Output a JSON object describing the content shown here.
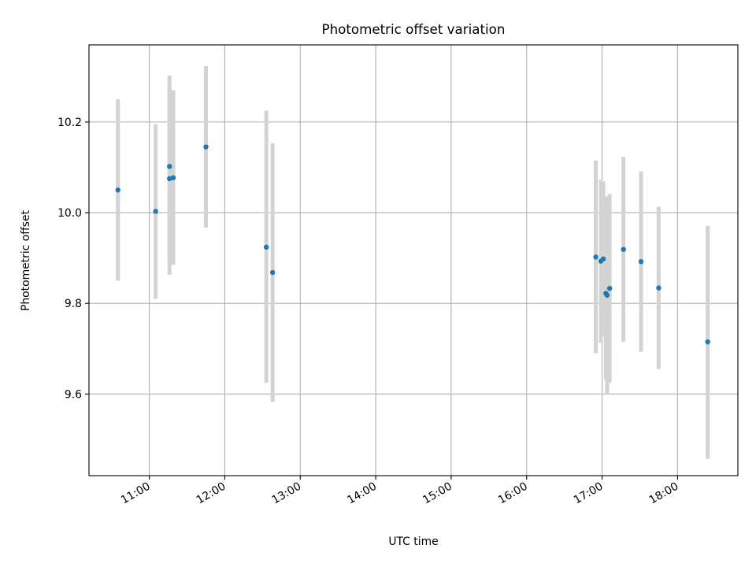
{
  "chart_data": {
    "type": "scatter",
    "title": "Photometric offset variation",
    "xlabel": "UTC time",
    "ylabel": "Photometric offset",
    "x_unit": "UTC hour of day",
    "xlim": [
      "10:12",
      "18:48"
    ],
    "ylim": [
      9.42,
      10.37
    ],
    "x_ticks": [
      "11:00",
      "12:00",
      "13:00",
      "14:00",
      "15:00",
      "16:00",
      "17:00",
      "18:00"
    ],
    "y_ticks": [
      "9.6",
      "9.8",
      "10.0",
      "10.2"
    ],
    "grid": true,
    "legend": "none",
    "colors": {
      "points": "#1f77b4",
      "error_bars": "#d3d3d3",
      "grid": "#b0b0b0"
    },
    "points": [
      {
        "time": "10:35",
        "y": 10.05,
        "err_low": 9.85,
        "err_high": 10.25
      },
      {
        "time": "11:05",
        "y": 10.003,
        "err_low": 9.81,
        "err_high": 10.195
      },
      {
        "time": "11:16",
        "y": 10.102,
        "err_low": 9.9,
        "err_high": 10.302
      },
      {
        "time": "11:16",
        "y": 10.075,
        "err_low": 9.863,
        "err_high": 10.287
      },
      {
        "time": "11:19",
        "y": 10.077,
        "err_low": 9.885,
        "err_high": 10.27
      },
      {
        "time": "11:45",
        "y": 10.145,
        "err_low": 9.967,
        "err_high": 10.323
      },
      {
        "time": "12:33",
        "y": 9.924,
        "err_low": 9.625,
        "err_high": 10.225
      },
      {
        "time": "12:38",
        "y": 9.868,
        "err_low": 9.583,
        "err_high": 10.153
      },
      {
        "time": "16:55",
        "y": 9.902,
        "err_low": 9.69,
        "err_high": 10.115
      },
      {
        "time": "16:59",
        "y": 9.893,
        "err_low": 9.713,
        "err_high": 10.073
      },
      {
        "time": "17:01",
        "y": 9.898,
        "err_low": 9.727,
        "err_high": 10.069
      },
      {
        "time": "17:03",
        "y": 9.822,
        "err_low": 9.632,
        "err_high": 10.012
      },
      {
        "time": "17:04",
        "y": 9.818,
        "err_low": 9.6,
        "err_high": 10.036
      },
      {
        "time": "17:06",
        "y": 9.833,
        "err_low": 9.625,
        "err_high": 10.041
      },
      {
        "time": "17:17",
        "y": 9.919,
        "err_low": 9.715,
        "err_high": 10.123
      },
      {
        "time": "17:31",
        "y": 9.892,
        "err_low": 9.693,
        "err_high": 10.091
      },
      {
        "time": "17:45",
        "y": 9.834,
        "err_low": 9.655,
        "err_high": 10.013
      },
      {
        "time": "18:24",
        "y": 9.715,
        "err_low": 9.457,
        "err_high": 9.971
      }
    ]
  }
}
